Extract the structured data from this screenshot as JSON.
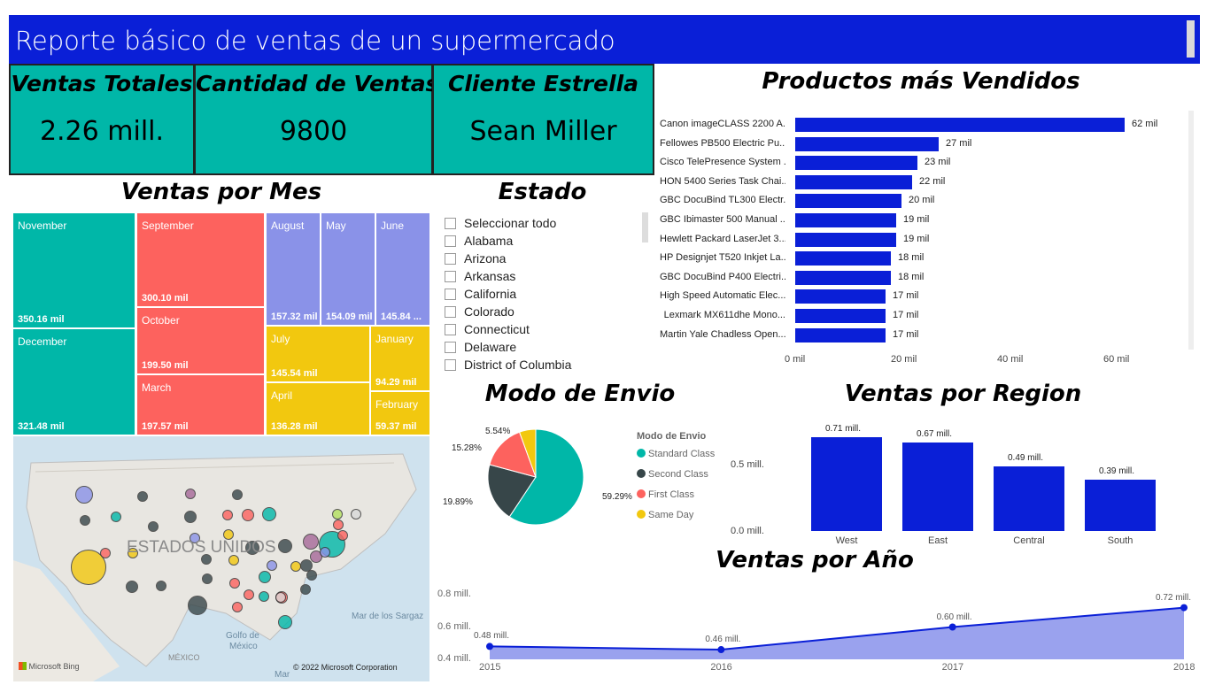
{
  "title": "Reporte básico de ventas de un supermercado",
  "kpis": [
    {
      "title": "Ventas Totales",
      "value": "2.26 mill."
    },
    {
      "title": "Cantidad de Ventas",
      "value": "9800"
    },
    {
      "title": "Cliente Estrella",
      "value": "Sean Miller"
    }
  ],
  "sections": {
    "ventas_mes": "Ventas por Mes",
    "estado": "Estado",
    "productos": "Productos más Vendidos",
    "envio": "Modo de Envio",
    "region": "Ventas por Region",
    "anio": "Ventas por Año"
  },
  "colors": {
    "brand": "#0a1fd7",
    "teal": "#00b7a8",
    "red": "#fd625e",
    "purple": "#8a92e8",
    "yellow": "#f2c80f",
    "dark": "#374649"
  },
  "treemap": [
    {
      "month": "November",
      "value": "350.16 mil",
      "color": "#00b7a8"
    },
    {
      "month": "December",
      "value": "321.48 mil",
      "color": "#00b7a8"
    },
    {
      "month": "September",
      "value": "300.10 mil",
      "color": "#fd625e"
    },
    {
      "month": "October",
      "value": "199.50 mil",
      "color": "#fd625e"
    },
    {
      "month": "March",
      "value": "197.57 mil",
      "color": "#fd625e"
    },
    {
      "month": "August",
      "value": "157.32 mil",
      "color": "#8a92e8"
    },
    {
      "month": "May",
      "value": "154.09 mil",
      "color": "#8a92e8"
    },
    {
      "month": "June",
      "value": "145.84 ...",
      "color": "#8a92e8"
    },
    {
      "month": "July",
      "value": "145.54 mil",
      "color": "#f2c80f"
    },
    {
      "month": "April",
      "value": "136.28 mil",
      "color": "#f2c80f"
    },
    {
      "month": "January",
      "value": "94.29 mil",
      "color": "#f2c80f"
    },
    {
      "month": "February",
      "value": "59.37 mil",
      "color": "#f2c80f"
    }
  ],
  "estado_items": [
    "Seleccionar todo",
    "Alabama",
    "Arizona",
    "Arkansas",
    "California",
    "Colorado",
    "Connecticut",
    "Delaware",
    "District of Columbia"
  ],
  "map": {
    "country_label": "ESTADOS UNIDOS",
    "labels": [
      "Mar de los Sargaz",
      "Golfo de",
      "México",
      "MÉXICO",
      "Mar"
    ],
    "bing": "Microsoft Bing",
    "copyright": "© 2022 Microsoft Corporation"
  },
  "chart_data": [
    {
      "type": "bar",
      "orientation": "horizontal",
      "title": "Productos más Vendidos",
      "categories": [
        "Canon imageCLASS 2200 A...",
        "Fellowes PB500 Electric Pu...",
        "Cisco TelePresence System ...",
        "HON 5400 Series Task Chai...",
        "GBC DocuBind TL300 Electr...",
        "GBC Ibimaster 500 Manual ...",
        "Hewlett Packard LaserJet 3...",
        "HP Designjet T520 Inkjet La...",
        "GBC DocuBind P400 Electri...",
        "High Speed Automatic Elec...",
        "Lexmark MX611dhe Mono...",
        "Martin Yale Chadless Open..."
      ],
      "values": [
        62,
        27,
        23,
        22,
        20,
        19,
        19,
        18,
        18,
        17,
        17,
        17
      ],
      "value_labels": [
        "62 mil",
        "27 mil",
        "23 mil",
        "22 mil",
        "20 mil",
        "19 mil",
        "19 mil",
        "18 mil",
        "18 mil",
        "17 mil",
        "17 mil",
        "17 mil"
      ],
      "xticks": [
        "0 mil",
        "20 mil",
        "40 mil",
        "60 mil"
      ],
      "xlim": [
        0,
        65
      ]
    },
    {
      "type": "pie",
      "title": "Modo de Envio",
      "legend_title": "Modo de Envio",
      "labels": [
        "Standard Class",
        "Second Class",
        "First Class",
        "Same Day"
      ],
      "values": [
        59.29,
        19.89,
        15.28,
        5.54
      ],
      "value_labels": [
        "59.29%",
        "19.89%",
        "15.28%",
        "5.54%"
      ],
      "colors": [
        "#00b7a8",
        "#374649",
        "#fd625e",
        "#f2c80f"
      ]
    },
    {
      "type": "bar",
      "title": "Ventas por Region",
      "categories": [
        "West",
        "East",
        "Central",
        "South"
      ],
      "values": [
        0.71,
        0.67,
        0.49,
        0.39
      ],
      "value_labels": [
        "0.71 mill.",
        "0.67 mill.",
        "0.49 mill.",
        "0.39 mill."
      ],
      "yticks": [
        "0.0 mill.",
        "0.5 mill."
      ],
      "ylim": [
        0,
        0.75
      ]
    },
    {
      "type": "area",
      "title": "Ventas por Año",
      "x": [
        "2015",
        "2016",
        "2017",
        "2018"
      ],
      "values": [
        0.48,
        0.46,
        0.6,
        0.72
      ],
      "value_labels": [
        "0.48 mill.",
        "0.46 mill.",
        "0.60 mill.",
        "0.72 mill."
      ],
      "yticks": [
        "0.4 mill.",
        "0.6 mill.",
        "0.8 mill."
      ],
      "ylim": [
        0.4,
        0.8
      ]
    }
  ]
}
